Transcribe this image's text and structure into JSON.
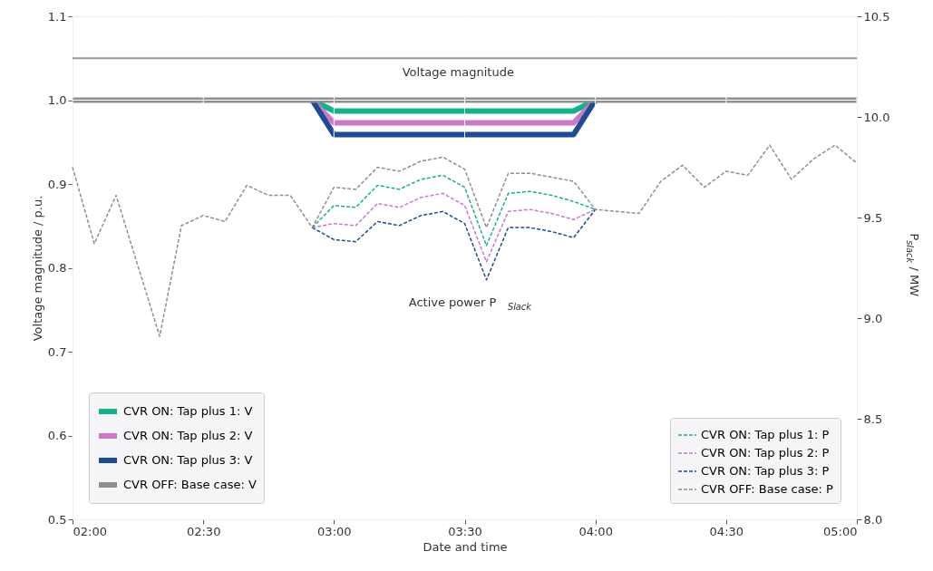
{
  "chart_data": {
    "type": "line",
    "xlabel": "Date and time",
    "ylabel": "Voltage magnitude / p.u.",
    "y2label": "P$_{slack}$ / MW",
    "x": [
      2.0,
      2.0833,
      2.1667,
      2.25,
      2.3333,
      2.4167,
      2.5,
      2.5833,
      2.6667,
      2.75,
      2.8333,
      2.9167,
      3.0,
      3.0833,
      3.1667,
      3.25,
      3.3333,
      3.4167,
      3.5,
      3.5833,
      3.6667,
      3.75,
      3.8333,
      3.9167,
      4.0,
      4.0833,
      4.1667,
      4.25,
      4.3333,
      4.4167,
      4.5,
      4.5833,
      4.6667,
      4.75,
      4.8333,
      4.9167,
      5.0
    ],
    "xlim": [
      2.0,
      5.0
    ],
    "xticks": [
      {
        "value": 2.0,
        "label": "02:00"
      },
      {
        "value": 2.5,
        "label": "02:30"
      },
      {
        "value": 3.0,
        "label": "03:00"
      },
      {
        "value": 3.5,
        "label": "03:30"
      },
      {
        "value": 4.0,
        "label": "04:00"
      },
      {
        "value": 4.5,
        "label": "04:30"
      },
      {
        "value": 5.0,
        "label": "05:00"
      }
    ],
    "ylim": [
      0.5,
      1.1
    ],
    "yticks": [
      0.5,
      0.6,
      0.7,
      0.8,
      0.9,
      {
        "value": 1.0,
        "label": "1.0"
      },
      1.1
    ],
    "y2lim": [
      8.0,
      10.5
    ],
    "y2ticks": [
      {
        "value": 8.0,
        "label": "8.0"
      },
      8.5,
      {
        "value": 9.0,
        "label": "9.0"
      },
      9.5,
      {
        "value": 10.0,
        "label": "10.0"
      },
      10.5
    ],
    "grid": true,
    "legend": "bottom",
    "marker": "none",
    "ref_lines": [
      {
        "axis": "y",
        "value": 1.05,
        "color": "#999999",
        "line_style": "solid"
      }
    ],
    "annotations": [
      "Voltage magnitude",
      "Active power P$_{Slack}$"
    ],
    "series": [
      {
        "name": "CVR ON: Tap plus 1: V",
        "color": "#12b38a",
        "line_style": "solid",
        "x": [
          2.9167,
          3.0,
          3.9167,
          4.0
        ],
        "values": [
          1.0,
          0.987,
          0.987,
          1.0
        ]
      },
      {
        "name": "CVR ON: Tap plus 2: V",
        "color": "#cc78c8",
        "line_style": "solid",
        "x": [
          2.9167,
          3.0,
          3.9167,
          4.0
        ],
        "values": [
          1.0,
          0.973,
          0.973,
          1.0
        ]
      },
      {
        "name": "CVR ON: Tap plus 3: V",
        "color": "#1f4b96",
        "line_style": "solid",
        "x": [
          2.9167,
          3.0,
          3.9167,
          4.0
        ],
        "values": [
          1.0,
          0.959,
          0.959,
          1.0
        ]
      },
      {
        "name": "CVR OFF: Base case: V",
        "color": "#8e8f8e",
        "line_style": "solid",
        "x": [
          2.0,
          5.0
        ],
        "values": [
          1.0,
          1.0
        ]
      },
      {
        "name": "CVR ON: Tap plus 1: P",
        "color": "#12b38a",
        "line_style": "dashed",
        "axis": "y2",
        "x": [
          2.9167,
          3.0,
          3.0833,
          3.1667,
          3.25,
          3.3333,
          3.4167,
          3.5,
          3.5833,
          3.6667,
          3.75,
          3.8333,
          3.9167,
          4.0
        ],
        "values": [
          9.45,
          9.56,
          9.55,
          9.66,
          9.64,
          9.69,
          9.71,
          9.65,
          9.36,
          9.62,
          9.63,
          9.61,
          9.58,
          9.54
        ]
      },
      {
        "name": "CVR ON: Tap plus 2: P",
        "color": "#cc78c8",
        "line_style": "dashed",
        "axis": "y2",
        "x": [
          2.9167,
          3.0,
          3.0833,
          3.1667,
          3.25,
          3.3333,
          3.4167,
          3.5,
          3.5833,
          3.6667,
          3.75,
          3.8333,
          3.9167,
          4.0
        ],
        "values": [
          9.45,
          9.47,
          9.46,
          9.57,
          9.55,
          9.6,
          9.62,
          9.56,
          9.28,
          9.53,
          9.54,
          9.52,
          9.49,
          9.54
        ]
      },
      {
        "name": "CVR ON: Tap plus 3: P",
        "color": "#1f4b96",
        "line_style": "dashed",
        "axis": "y2",
        "x": [
          2.9167,
          3.0,
          3.0833,
          3.1667,
          3.25,
          3.3333,
          3.4167,
          3.5,
          3.5833,
          3.6667,
          3.75,
          3.8333,
          3.9167,
          4.0
        ],
        "values": [
          9.45,
          9.39,
          9.38,
          9.48,
          9.46,
          9.51,
          9.53,
          9.47,
          9.19,
          9.45,
          9.45,
          9.43,
          9.4,
          9.54
        ]
      },
      {
        "name": "CVR OFF: Base case: P",
        "color": "#8e8f8e",
        "line_style": "dashed",
        "axis": "y2",
        "values": [
          9.75,
          9.37,
          9.61,
          9.26,
          8.91,
          9.46,
          9.51,
          9.48,
          9.66,
          9.61,
          9.61,
          9.45,
          9.65,
          9.64,
          9.75,
          9.73,
          9.78,
          9.8,
          9.74,
          9.45,
          9.72,
          9.72,
          9.7,
          9.68,
          9.54,
          9.53,
          9.52,
          9.68,
          9.76,
          9.65,
          9.73,
          9.71,
          9.86,
          9.69,
          9.79,
          9.86,
          9.77
        ]
      }
    ]
  }
}
